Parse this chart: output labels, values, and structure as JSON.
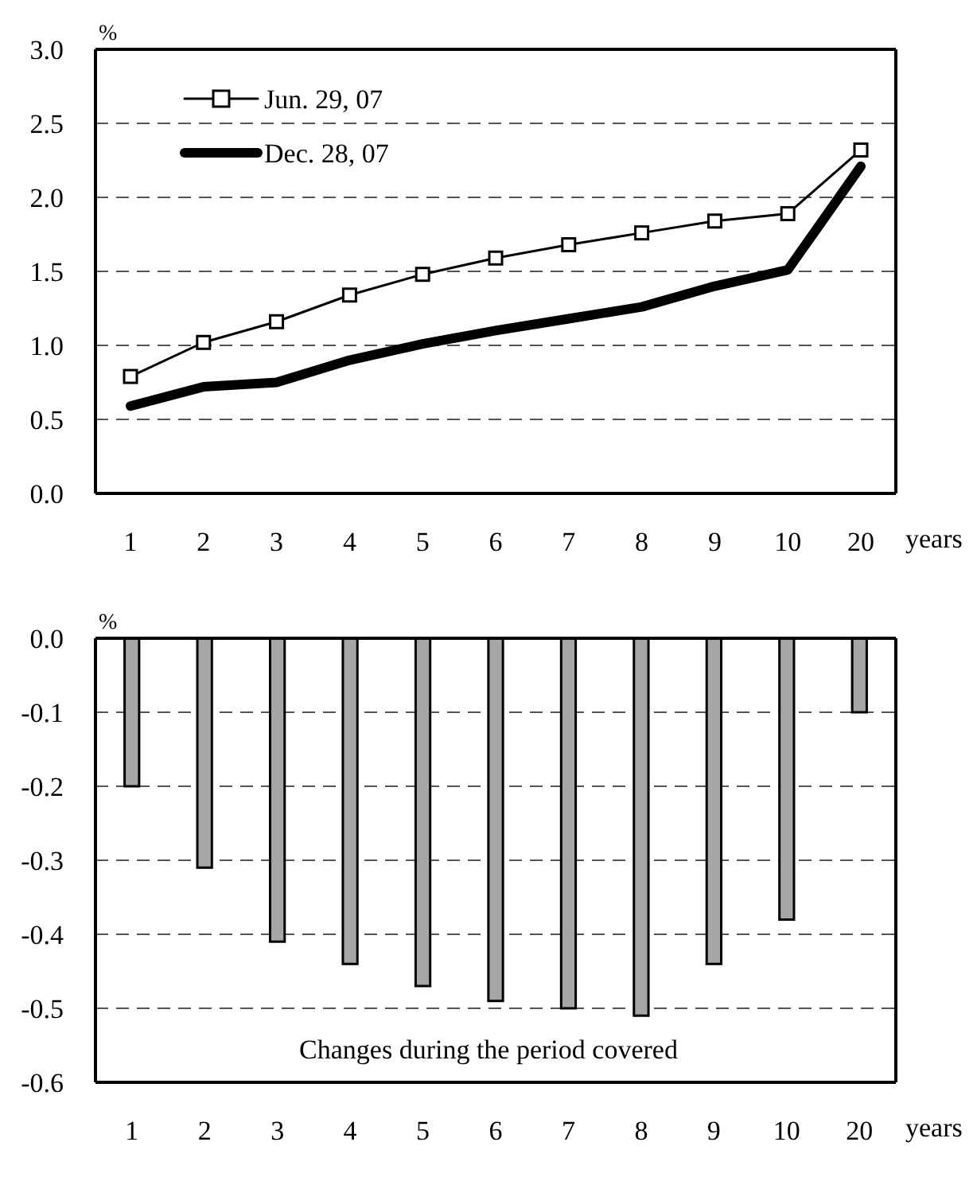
{
  "chart_data": [
    {
      "type": "line",
      "ylabel": "%",
      "xlabel": "years",
      "categories": [
        "1",
        "2",
        "3",
        "4",
        "5",
        "6",
        "7",
        "8",
        "9",
        "10",
        "20"
      ],
      "series": [
        {
          "name": "Jun. 29, 07",
          "color": "#000000",
          "marker": "square",
          "values": [
            0.79,
            1.02,
            1.16,
            1.34,
            1.48,
            1.59,
            1.68,
            1.76,
            1.84,
            1.89,
            2.32
          ]
        },
        {
          "name": "Dec. 28, 07",
          "color": "#000000",
          "marker": "none",
          "values": [
            0.59,
            0.72,
            0.75,
            0.9,
            1.01,
            1.1,
            1.18,
            1.26,
            1.4,
            1.51,
            2.21
          ]
        }
      ],
      "ylim": [
        0,
        3
      ],
      "yticks": [
        {
          "value": 0,
          "label": "0.0"
        },
        {
          "value": 0.5,
          "label": "0.5"
        },
        {
          "value": 1,
          "label": "1.0"
        },
        {
          "value": 1.5,
          "label": "1.5"
        },
        {
          "value": 2,
          "label": "2.0"
        },
        {
          "value": 2.5,
          "label": "2.5"
        },
        {
          "value": 3,
          "label": "3.0"
        }
      ],
      "grid": "y",
      "legend": "top left",
      "line_style": "solid"
    },
    {
      "type": "bar",
      "ylabel": "%",
      "xlabel": "years",
      "categories": [
        "1",
        "2",
        "3",
        "4",
        "5",
        "6",
        "7",
        "8",
        "9",
        "10",
        "20"
      ],
      "values": [
        -0.2,
        -0.31,
        -0.41,
        -0.44,
        -0.47,
        -0.49,
        -0.5,
        -0.51,
        -0.44,
        -0.38,
        -0.1
      ],
      "color": "#a6a6a6",
      "ylim": [
        -0.6,
        0
      ],
      "yticks": [
        {
          "value": -0.6,
          "label": "-0.6"
        },
        {
          "value": -0.5,
          "label": "-0.5"
        },
        {
          "value": -0.4,
          "label": "-0.4"
        },
        {
          "value": -0.3,
          "label": "-0.3"
        },
        {
          "value": -0.2,
          "label": "-0.2"
        },
        {
          "value": -0.1,
          "label": "-0.1"
        },
        {
          "value": 0,
          "label": "0.0"
        }
      ],
      "grid": "y",
      "legend": false,
      "annotations": [
        "Changes during the period covered"
      ]
    }
  ]
}
